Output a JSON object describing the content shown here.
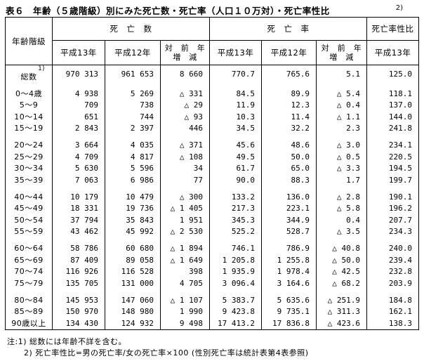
{
  "page": {
    "title": "表６　年齢（５歳階級）別にみた死亡数・死亡率（人口１０万対）・死亡率性比",
    "title_note_ref": "2)"
  },
  "table": {
    "col_age": "年齢階級",
    "group_deaths": "死　亡　数",
    "group_rate": "死　亡　率",
    "group_ratio": "死亡率性比",
    "sub_h13": "平成13年",
    "sub_h12": "平成12年",
    "sub_diff": "対　前　年\n増　減",
    "sub_ratio_year": "平成13年",
    "rows": [
      {
        "age": "総数",
        "sup": "1)",
        "group_start": false,
        "deaths_h13": "970 313",
        "deaths_h12": "961 653",
        "deaths_diff": "8 660",
        "rate_h13": "770.7",
        "rate_h12": "765.6",
        "rate_diff": "5.1",
        "sex_ratio": "125.0"
      },
      {
        "age": "0〜4歳",
        "group_start": true,
        "deaths_h13": "4 938",
        "deaths_h12": "5 269",
        "deaths_diff": "△ 331",
        "rate_h13": "84.5",
        "rate_h12": "89.9",
        "rate_diff": "△ 5.4",
        "sex_ratio": "118.1"
      },
      {
        "age": "5〜9",
        "group_start": false,
        "deaths_h13": "709",
        "deaths_h12": "738",
        "deaths_diff": "△ 29",
        "rate_h13": "11.9",
        "rate_h12": "12.3",
        "rate_diff": "△ 0.4",
        "sex_ratio": "137.0"
      },
      {
        "age": "10〜14",
        "group_start": false,
        "deaths_h13": "651",
        "deaths_h12": "744",
        "deaths_diff": "△ 93",
        "rate_h13": "10.3",
        "rate_h12": "11.4",
        "rate_diff": "△ 1.1",
        "sex_ratio": "144.0"
      },
      {
        "age": "15〜19",
        "group_start": false,
        "deaths_h13": "2 843",
        "deaths_h12": "2 397",
        "deaths_diff": "446",
        "rate_h13": "34.5",
        "rate_h12": "32.2",
        "rate_diff": "2.3",
        "sex_ratio": "241.8"
      },
      {
        "age": "20〜24",
        "group_start": true,
        "deaths_h13": "3 664",
        "deaths_h12": "4 035",
        "deaths_diff": "△ 371",
        "rate_h13": "45.6",
        "rate_h12": "48.6",
        "rate_diff": "△ 3.0",
        "sex_ratio": "234.1"
      },
      {
        "age": "25〜29",
        "group_start": false,
        "deaths_h13": "4 709",
        "deaths_h12": "4 817",
        "deaths_diff": "△ 108",
        "rate_h13": "49.5",
        "rate_h12": "50.0",
        "rate_diff": "△ 0.5",
        "sex_ratio": "220.5"
      },
      {
        "age": "30〜34",
        "group_start": false,
        "deaths_h13": "5 630",
        "deaths_h12": "5 596",
        "deaths_diff": "34",
        "rate_h13": "61.7",
        "rate_h12": "65.0",
        "rate_diff": "△ 3.3",
        "sex_ratio": "194.5"
      },
      {
        "age": "35〜39",
        "group_start": false,
        "deaths_h13": "7 063",
        "deaths_h12": "6 986",
        "deaths_diff": "77",
        "rate_h13": "90.0",
        "rate_h12": "88.3",
        "rate_diff": "1.7",
        "sex_ratio": "199.7"
      },
      {
        "age": "40〜44",
        "group_start": true,
        "deaths_h13": "10 179",
        "deaths_h12": "10 479",
        "deaths_diff": "△ 300",
        "rate_h13": "133.2",
        "rate_h12": "136.0",
        "rate_diff": "△ 2.8",
        "sex_ratio": "190.1"
      },
      {
        "age": "45〜49",
        "group_start": false,
        "deaths_h13": "18 331",
        "deaths_h12": "19 736",
        "deaths_diff": "△ 1 405",
        "rate_h13": "217.3",
        "rate_h12": "223.1",
        "rate_diff": "△ 5.8",
        "sex_ratio": "196.2"
      },
      {
        "age": "50〜54",
        "group_start": false,
        "deaths_h13": "37 794",
        "deaths_h12": "35 843",
        "deaths_diff": "1 951",
        "rate_h13": "345.3",
        "rate_h12": "344.9",
        "rate_diff": "0.4",
        "sex_ratio": "207.7"
      },
      {
        "age": "55〜59",
        "group_start": false,
        "deaths_h13": "43 462",
        "deaths_h12": "45 992",
        "deaths_diff": "△ 2 530",
        "rate_h13": "525.2",
        "rate_h12": "528.7",
        "rate_diff": "△ 3.5",
        "sex_ratio": "234.3"
      },
      {
        "age": "60〜64",
        "group_start": true,
        "deaths_h13": "58 786",
        "deaths_h12": "60 680",
        "deaths_diff": "△ 1 894",
        "rate_h13": "746.1",
        "rate_h12": "786.9",
        "rate_diff": "△ 40.8",
        "sex_ratio": "240.0"
      },
      {
        "age": "65〜69",
        "group_start": false,
        "deaths_h13": "87 409",
        "deaths_h12": "89 058",
        "deaths_diff": "△ 1 649",
        "rate_h13": "1 205.8",
        "rate_h12": "1 255.8",
        "rate_diff": "△ 50.0",
        "sex_ratio": "239.4"
      },
      {
        "age": "70〜74",
        "group_start": false,
        "deaths_h13": "116 926",
        "deaths_h12": "116 528",
        "deaths_diff": "398",
        "rate_h13": "1 935.9",
        "rate_h12": "1 978.4",
        "rate_diff": "△ 42.5",
        "sex_ratio": "232.8"
      },
      {
        "age": "75〜79",
        "group_start": false,
        "deaths_h13": "135 705",
        "deaths_h12": "131 000",
        "deaths_diff": "4 705",
        "rate_h13": "3 096.4",
        "rate_h12": "3 164.6",
        "rate_diff": "△ 68.2",
        "sex_ratio": "203.9"
      },
      {
        "age": "80〜84",
        "group_start": true,
        "deaths_h13": "145 953",
        "deaths_h12": "147 060",
        "deaths_diff": "△ 1 107",
        "rate_h13": "5 383.7",
        "rate_h12": "5 635.6",
        "rate_diff": "△ 251.9",
        "sex_ratio": "184.8"
      },
      {
        "age": "85〜89",
        "group_start": false,
        "deaths_h13": "150 970",
        "deaths_h12": "148 980",
        "deaths_diff": "1 990",
        "rate_h13": "9 423.8",
        "rate_h12": "9 735.1",
        "rate_diff": "△ 311.3",
        "sex_ratio": "162.1"
      },
      {
        "age": "90歳以上",
        "group_start": false,
        "deaths_h13": "134 430",
        "deaths_h12": "124 932",
        "deaths_diff": "9 498",
        "rate_h13": "17 413.2",
        "rate_h12": "17 836.8",
        "rate_diff": "△ 423.6",
        "sex_ratio": "138.3"
      }
    ]
  },
  "notes": {
    "line1": "注:1) 総数には年齢不詳を含む。",
    "line2": "2) 死亡率性比=男の死亡率/女の死亡率×100 (性別死亡率は統計表第4表参照)"
  }
}
